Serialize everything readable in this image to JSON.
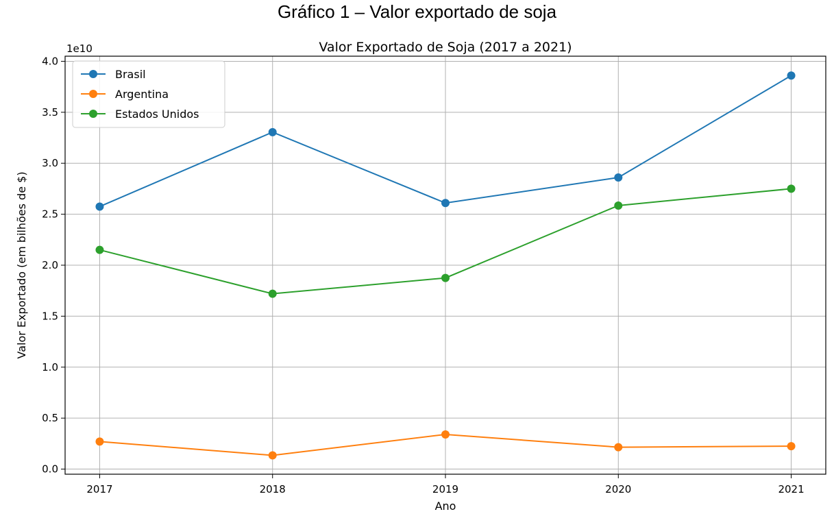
{
  "figure_caption": "Gráfico 1 – Valor exportado de soja",
  "chart_data": {
    "type": "line",
    "title": "Valor Exportado de Soja (2017 a 2021)",
    "xlabel": "Ano",
    "ylabel": "Valor Exportado (em bilhões de $)",
    "y_offset_label": "1e10",
    "x": [
      2017,
      2018,
      2019,
      2020,
      2021
    ],
    "x_tick_labels": [
      "2017",
      "2018",
      "2019",
      "2020",
      "2021"
    ],
    "y_ticks": [
      0.0,
      0.5,
      1.0,
      1.5,
      2.0,
      2.5,
      3.0,
      3.5,
      4.0
    ],
    "y_tick_labels": [
      "0.0",
      "0.5",
      "1.0",
      "1.5",
      "2.0",
      "2.5",
      "3.0",
      "3.5",
      "4.0"
    ],
    "ylim": [
      -0.05,
      4.05
    ],
    "xlim": [
      2016.8,
      2021.2
    ],
    "grid": true,
    "legend_position": "top-left",
    "series": [
      {
        "name": "Brasil",
        "color": "#1f77b4",
        "values": [
          2.575,
          3.305,
          2.61,
          2.86,
          3.86
        ]
      },
      {
        "name": "Argentina",
        "color": "#ff7f0e",
        "values": [
          0.27,
          0.135,
          0.34,
          0.215,
          0.225
        ]
      },
      {
        "name": "Estados Unidos",
        "color": "#2ca02c",
        "values": [
          2.15,
          1.72,
          1.875,
          2.585,
          2.75
        ]
      }
    ]
  }
}
